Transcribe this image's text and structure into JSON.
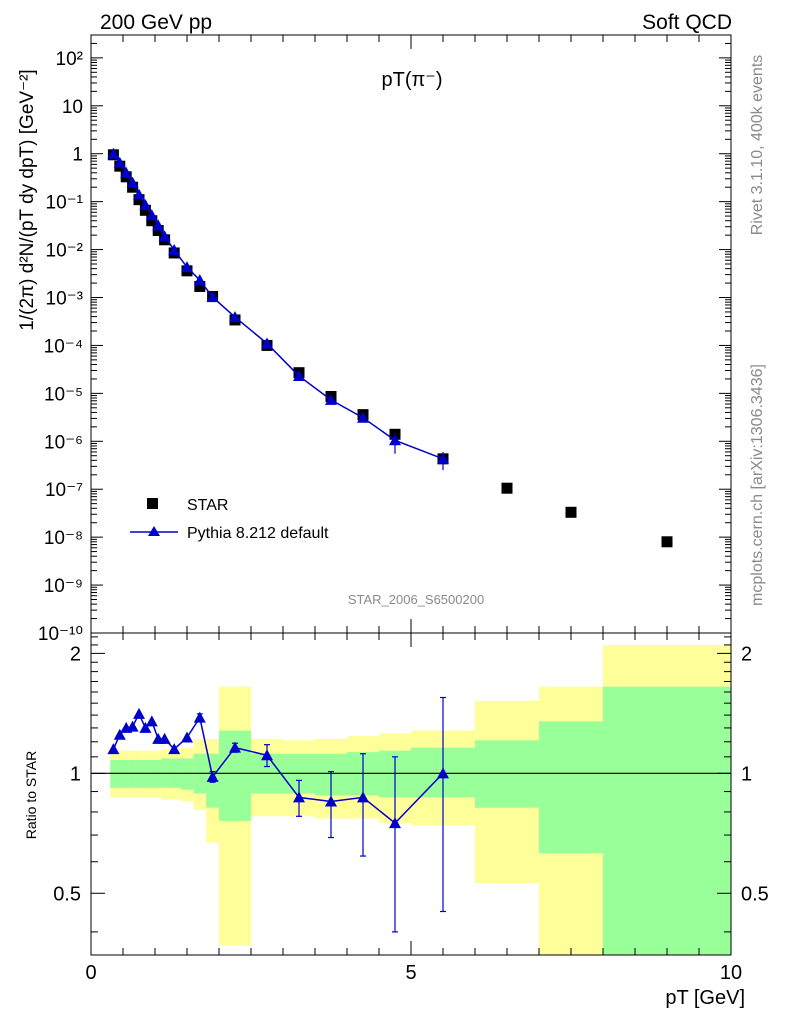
{
  "header": {
    "left": "200 GeV pp",
    "right": "Soft QCD"
  },
  "side_text": {
    "top": "Rivet 3.1.10,  400k events",
    "bottom": "mcplots.cern.ch [arXiv:1306.3436]"
  },
  "colors": {
    "star": "#000000",
    "pythia": "#0000cc",
    "band_outer": "#ffff99",
    "band_inner": "#99ff99"
  },
  "chart_data": [
    {
      "type": "scatter",
      "title": "pT(π⁻)",
      "xlabel": "pT [GeV]",
      "ylabel": "1/(2π) d²N/(pT dy dpT) [GeV⁻²]",
      "xlim": [
        0,
        10
      ],
      "ylim": [
        1e-10,
        300
      ],
      "yscale": "log",
      "watermark": "STAR_2006_S6500200",
      "legend": {
        "placement": "bottom-left",
        "entries": [
          "STAR",
          "Pythia 8.212 default"
        ]
      },
      "y_tick_labels": [
        "10⁻¹⁰",
        "10⁻⁹",
        "10⁻⁸",
        "10⁻⁷",
        "10⁻⁶",
        "10⁻⁵",
        "10⁻⁴",
        "10⁻³",
        "10⁻²",
        "10⁻¹",
        "1",
        "10",
        "10²"
      ],
      "series": [
        {
          "name": "STAR",
          "marker": "square",
          "points": [
            [
              0.35,
              0.95
            ],
            [
              0.45,
              0.55
            ],
            [
              0.55,
              0.33
            ],
            [
              0.65,
              0.2
            ],
            [
              0.75,
              0.11
            ],
            [
              0.85,
              0.066
            ],
            [
              0.95,
              0.04
            ],
            [
              1.05,
              0.025
            ],
            [
              1.15,
              0.016
            ],
            [
              1.3,
              0.0085
            ],
            [
              1.5,
              0.0036
            ],
            [
              1.7,
              0.0017
            ],
            [
              1.9,
              0.00105
            ],
            [
              2.25,
              0.00034
            ],
            [
              2.75,
              0.0001
            ],
            [
              3.25,
              2.7e-05
            ],
            [
              3.75,
              8.6e-06
            ],
            [
              4.25,
              3.6e-06
            ],
            [
              4.75,
              1.4e-06
            ],
            [
              5.5,
              4.3e-07
            ],
            [
              6.5,
              1.05e-07
            ],
            [
              7.5,
              3.3e-08
            ],
            [
              9.0,
              8e-09
            ]
          ]
        },
        {
          "name": "Pythia 8.212 default",
          "marker": "triangle",
          "points": [
            [
              0.35,
              1.0
            ],
            [
              0.45,
              0.65
            ],
            [
              0.55,
              0.4
            ],
            [
              0.65,
              0.25
            ],
            [
              0.75,
              0.14
            ],
            [
              0.85,
              0.085
            ],
            [
              0.95,
              0.052
            ],
            [
              1.05,
              0.032
            ],
            [
              1.15,
              0.019
            ],
            [
              1.3,
              0.0098
            ],
            [
              1.5,
              0.0043
            ],
            [
              1.7,
              0.0023
            ],
            [
              1.9,
              0.00102
            ],
            [
              2.25,
              0.00039
            ],
            [
              2.75,
              0.00011
            ],
            [
              3.25,
              2.3e-05
            ],
            [
              3.75,
              7.3e-06
            ],
            [
              4.25,
              3.1e-06
            ],
            [
              4.75,
              1.05e-06
            ],
            [
              5.5,
              4.3e-07
            ]
          ]
        }
      ]
    },
    {
      "type": "scatter",
      "ylabel": "Ratio to STAR",
      "xlabel": "pT [GeV]",
      "xlim": [
        0,
        10
      ],
      "ylim": [
        0.35,
        2.25
      ],
      "yscale": "log",
      "x_tick_labels": [
        "0",
        "5",
        "10"
      ],
      "y_tick_labels": [
        "0.5",
        "1",
        "2"
      ],
      "bands": [
        {
          "x": [
            0.3,
            0.4
          ],
          "outer": [
            0.87,
            1.14
          ],
          "inner": [
            0.92,
            1.08
          ]
        },
        {
          "x": [
            0.4,
            0.5
          ],
          "outer": [
            0.87,
            1.14
          ],
          "inner": [
            0.92,
            1.08
          ]
        },
        {
          "x": [
            0.5,
            0.6
          ],
          "outer": [
            0.87,
            1.14
          ],
          "inner": [
            0.92,
            1.08
          ]
        },
        {
          "x": [
            0.6,
            0.7
          ],
          "outer": [
            0.87,
            1.14
          ],
          "inner": [
            0.92,
            1.08
          ]
        },
        {
          "x": [
            0.7,
            0.8
          ],
          "outer": [
            0.87,
            1.14
          ],
          "inner": [
            0.92,
            1.08
          ]
        },
        {
          "x": [
            0.8,
            0.9
          ],
          "outer": [
            0.87,
            1.14
          ],
          "inner": [
            0.92,
            1.08
          ]
        },
        {
          "x": [
            0.9,
            1.0
          ],
          "outer": [
            0.87,
            1.14
          ],
          "inner": [
            0.92,
            1.08
          ]
        },
        {
          "x": [
            1.0,
            1.1
          ],
          "outer": [
            0.87,
            1.14
          ],
          "inner": [
            0.92,
            1.08
          ]
        },
        {
          "x": [
            1.1,
            1.2
          ],
          "outer": [
            0.86,
            1.15
          ],
          "inner": [
            0.92,
            1.09
          ]
        },
        {
          "x": [
            1.2,
            1.4
          ],
          "outer": [
            0.86,
            1.15
          ],
          "inner": [
            0.92,
            1.09
          ]
        },
        {
          "x": [
            1.4,
            1.6
          ],
          "outer": [
            0.85,
            1.16
          ],
          "inner": [
            0.91,
            1.09
          ]
        },
        {
          "x": [
            1.6,
            1.8
          ],
          "outer": [
            0.81,
            1.22
          ],
          "inner": [
            0.89,
            1.12
          ]
        },
        {
          "x": [
            1.8,
            2.0
          ],
          "outer": [
            0.67,
            1.22
          ],
          "inner": [
            0.82,
            1.12
          ]
        },
        {
          "x": [
            2.0,
            2.5
          ],
          "outer": [
            0.37,
            1.65
          ],
          "inner": [
            0.76,
            1.28
          ]
        },
        {
          "x": [
            2.5,
            3.0
          ],
          "outer": [
            0.78,
            1.22
          ],
          "inner": [
            0.89,
            1.12
          ]
        },
        {
          "x": [
            3.0,
            3.5
          ],
          "outer": [
            0.78,
            1.21
          ],
          "inner": [
            0.89,
            1.12
          ]
        },
        {
          "x": [
            3.5,
            4.0
          ],
          "outer": [
            0.77,
            1.22
          ],
          "inner": [
            0.88,
            1.12
          ]
        },
        {
          "x": [
            4.0,
            4.5
          ],
          "outer": [
            0.77,
            1.24
          ],
          "inner": [
            0.88,
            1.13
          ]
        },
        {
          "x": [
            4.5,
            5.0
          ],
          "outer": [
            0.75,
            1.26
          ],
          "inner": [
            0.87,
            1.14
          ]
        },
        {
          "x": [
            5.0,
            6.0
          ],
          "outer": [
            0.74,
            1.28
          ],
          "inner": [
            0.87,
            1.16
          ]
        },
        {
          "x": [
            6.0,
            7.0
          ],
          "outer": [
            0.53,
            1.52
          ],
          "inner": [
            0.82,
            1.21
          ]
        },
        {
          "x": [
            7.0,
            8.0
          ],
          "outer": [
            0.34,
            1.65
          ],
          "inner": [
            0.63,
            1.35
          ]
        },
        {
          "x": [
            8.0,
            10.0
          ],
          "outer": [
            0.34,
            2.1
          ],
          "inner": [
            0.34,
            1.65
          ]
        }
      ],
      "reference_line": 1.0,
      "series": [
        {
          "name": "Pythia 8.212 default",
          "marker": "triangle",
          "points": [
            [
              0.35,
              1.15,
              0.01
            ],
            [
              0.45,
              1.25,
              0.01
            ],
            [
              0.55,
              1.3,
              0.01
            ],
            [
              0.65,
              1.31,
              0.01
            ],
            [
              0.75,
              1.41,
              0.02
            ],
            [
              0.85,
              1.3,
              0.01
            ],
            [
              0.95,
              1.35,
              0.01
            ],
            [
              1.05,
              1.22,
              0.01
            ],
            [
              1.15,
              1.22,
              0.01
            ],
            [
              1.3,
              1.15,
              0.01
            ],
            [
              1.5,
              1.23,
              0.01
            ],
            [
              1.7,
              1.38,
              0.03
            ],
            [
              1.9,
              0.98,
              0.03
            ],
            [
              2.25,
              1.16,
              0.03
            ],
            [
              2.75,
              1.11,
              0.07
            ],
            [
              3.25,
              0.87,
              0.09
            ],
            [
              3.75,
              0.85,
              0.16
            ],
            [
              4.25,
              0.87,
              0.25
            ],
            [
              4.75,
              0.75,
              0.35
            ],
            [
              5.5,
              1.0,
              0.55
            ]
          ]
        }
      ]
    }
  ]
}
